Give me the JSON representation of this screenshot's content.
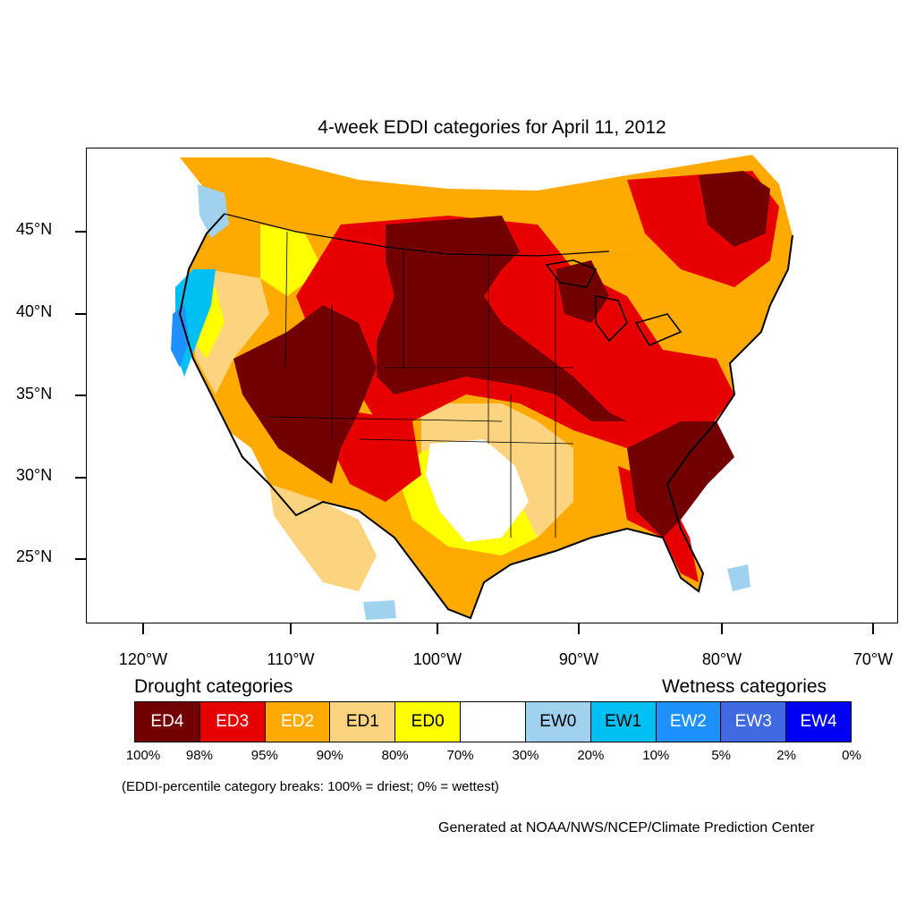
{
  "title": "4-week EDDI categories for April 11, 2012",
  "latitude_labels": [
    "45°N",
    "40°N",
    "35°N",
    "30°N",
    "25°N"
  ],
  "longitude_labels": [
    "120°W",
    "110°W",
    "100°W",
    "90°W",
    "80°W",
    "70°W"
  ],
  "drought_heading": "Drought categories",
  "wetness_heading": "Wetness categories",
  "categories": [
    {
      "label": "ED4",
      "color": "#730000",
      "text_color": "#ffffff"
    },
    {
      "label": "ED3",
      "color": "#e60000",
      "text_color": "#ffffff"
    },
    {
      "label": "ED2",
      "color": "#ffaa00",
      "text_color": "#ffffff"
    },
    {
      "label": "ED1",
      "color": "#fcd37f",
      "text_color": "#000000"
    },
    {
      "label": "ED0",
      "color": "#ffff00",
      "text_color": "#000000"
    },
    {
      "label": "",
      "color": "#ffffff",
      "text_color": "#000000"
    },
    {
      "label": "EW0",
      "color": "#a0d2f0",
      "text_color": "#000000"
    },
    {
      "label": "EW1",
      "color": "#00bff3",
      "text_color": "#000000"
    },
    {
      "label": "EW2",
      "color": "#1e90ff",
      "text_color": "#ffffff"
    },
    {
      "label": "EW3",
      "color": "#4169e1",
      "text_color": "#ffffff"
    },
    {
      "label": "EW4",
      "color": "#0000f5",
      "text_color": "#ffffff"
    }
  ],
  "percentile_breaks": [
    "100%",
    "98%",
    "95%",
    "90%",
    "80%",
    "70%",
    "30%",
    "20%",
    "10%",
    "5%",
    "2%",
    "0%"
  ],
  "breaks_note": "(EDDI-percentile category breaks: 100% = driest; 0% = wettest)",
  "credit": "Generated at NOAA/NWS/NCEP/Climate Prediction Center"
}
